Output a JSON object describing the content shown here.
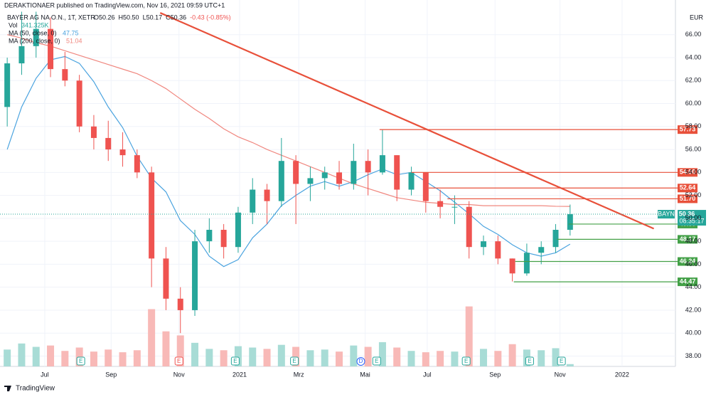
{
  "chart_data": {
    "type": "candlestick",
    "header": "DERAKTIONAER published on TradingView.com, Nov 16, 2021 09:59 UTC+1",
    "symbol": "BAYER AG NA O.N., 1T, XETR",
    "quote": [
      "O50.26",
      "H50.50",
      "L50.17",
      "C50.36",
      "-0.43 (-0.85%)"
    ],
    "currency": "EUR",
    "footer": "TradingView",
    "x": [
      0,
      1,
      2,
      3,
      4,
      5,
      6,
      7,
      8,
      9,
      10,
      11,
      12,
      13,
      14,
      15,
      16,
      17,
      18,
      19,
      20,
      21,
      22,
      23,
      24,
      25,
      26,
      27,
      28,
      29,
      30,
      31,
      32,
      33,
      34,
      35,
      36,
      37,
      38,
      39
    ],
    "open": [
      59.7,
      63.5,
      65,
      66.5,
      63,
      62,
      58,
      57,
      56,
      55.5,
      54,
      46.5,
      43,
      42,
      48,
      49,
      47.5,
      50.5,
      52.5,
      51.5,
      55,
      53,
      53.5,
      54,
      53,
      55,
      54,
      55.5,
      52.5,
      54,
      51.5,
      51,
      51,
      47.5,
      48,
      46.5,
      45.2,
      47,
      47.5,
      49
    ],
    "high": [
      64,
      68,
      68,
      67.5,
      64.5,
      62.5,
      59,
      58.5,
      57.5,
      56,
      54.5,
      47.5,
      44,
      49,
      50,
      49.5,
      51,
      53.5,
      53,
      57,
      55.5,
      54.5,
      54.5,
      55,
      56.5,
      56,
      57.7,
      55.5,
      54.5,
      54,
      52.5,
      52,
      51.5,
      48.5,
      48.5,
      46.5,
      47.8,
      48,
      49.5,
      51.2
    ],
    "low": [
      58,
      62.5,
      64,
      62.3,
      61.5,
      57.5,
      56,
      55,
      54.5,
      53.5,
      44,
      42,
      40,
      41.5,
      47,
      46.5,
      47,
      49.5,
      49.5,
      51,
      49.5,
      51.5,
      52.5,
      52.5,
      52.5,
      52,
      53.8,
      51.5,
      52,
      50.5,
      50,
      49.5,
      46.5,
      46.8,
      46,
      44.5,
      45,
      46,
      47,
      48.5
    ],
    "close": [
      63.5,
      65,
      66.5,
      63,
      62,
      58,
      57,
      56,
      55.5,
      54,
      46.5,
      43,
      42,
      48,
      49,
      47.5,
      50.5,
      52.5,
      51.5,
      55,
      53,
      53.5,
      54,
      53,
      55,
      54,
      55.5,
      52.5,
      54,
      51.5,
      51,
      51,
      47.5,
      48,
      46.5,
      45.2,
      47,
      47.5,
      49,
      50.36
    ],
    "colors": {
      "up": "#26a69a",
      "down": "#ef5350"
    },
    "volume": {
      "name": "Vol",
      "last_label": "341.325K",
      "color_up": "#a8dcd6",
      "color_down": "#f8b9b7",
      "values": [
        2500,
        3400,
        2900,
        3100,
        2300,
        2800,
        2200,
        2500,
        2100,
        2400,
        8500,
        5200,
        4600,
        3500,
        2600,
        2400,
        3000,
        2800,
        2600,
        3200,
        2900,
        2400,
        2500,
        2200,
        3100,
        2900,
        3600,
        2800,
        2300,
        2100,
        2300,
        2200,
        8900,
        2600,
        2300,
        3300,
        2500,
        2400,
        2700,
        341.325
      ],
      "vlim": [
        0,
        9500
      ]
    },
    "series": [
      {
        "name": "MA (50, close, 0)",
        "color": "#4aa3df",
        "values": [
          56,
          59.7,
          62.2,
          63.8,
          64.1,
          63.5,
          61.9,
          59.7,
          57.9,
          55.4,
          53.5,
          52.3,
          49.8,
          48.6,
          46.7,
          45.8,
          46.4,
          48.3,
          49.5,
          51.1,
          52,
          52.8,
          53.2,
          52.8,
          53.2,
          53.8,
          54.3,
          53.8,
          54,
          53.2,
          52.4,
          51.4,
          50.4,
          49.3,
          48.6,
          47.7,
          47,
          46.7,
          47,
          47.75
        ]
      },
      {
        "name": "MA (200, close, 0)",
        "color": "#f0877f",
        "values": [
          66,
          65.7,
          65.3,
          65,
          64.6,
          64.2,
          63.8,
          63.4,
          63,
          62.6,
          62,
          61.3,
          60.4,
          59.5,
          58.7,
          57.8,
          57.1,
          56.6,
          56,
          55.5,
          55,
          54.5,
          54,
          53.5,
          53,
          52.6,
          52.2,
          51.8,
          51.6,
          51.4,
          51.3,
          51.2,
          51.2,
          51.1,
          51.1,
          51.1,
          51.1,
          51.1,
          51.05,
          51.04
        ]
      }
    ],
    "trendline": {
      "color": "#e8503a",
      "x": [
        10.6,
        44.8
      ],
      "values": [
        67.9,
        49.1
      ]
    },
    "levels": [
      {
        "value": 57.73,
        "start": 25.8,
        "color": "#e8503a"
      },
      {
        "value": {
          "value": 54,
          "label": "54.00"
        },
        "start": 28,
        "color": "#e8503a"
      },
      {
        "value": 52.64,
        "start": 29.2,
        "color": "#e8503a"
      },
      {
        "value": {
          "value": 51.7,
          "label": "51.70"
        },
        "start": 30.5,
        "color": "#e8503a"
      },
      {
        "value": {
          "value": 49.5,
          "label": "49.50"
        },
        "start": 38.9,
        "color": "#43a047"
      },
      {
        "value": 48.17,
        "start": 38.1,
        "color": "#43a047"
      },
      {
        "value": 46.24,
        "start": 35.2,
        "color": "#43a047"
      },
      {
        "value": 44.47,
        "start": 35.1,
        "color": "#43a047"
      }
    ],
    "last_price": {
      "name": "BAYN",
      "value": 50.36,
      "time": "08:35:17",
      "color": "#26a69a"
    },
    "events": [
      {
        "x": 5.1,
        "label": "E",
        "color": "#26a69a"
      },
      {
        "x": 11.9,
        "label": "E",
        "color": "#ef5350"
      },
      {
        "x": 15.8,
        "label": "E",
        "color": "#26a69a"
      },
      {
        "x": 19.9,
        "label": "E",
        "color": "#26a69a"
      },
      {
        "x": 24.5,
        "label": "D",
        "color": "#2962ff"
      },
      {
        "x": 25.6,
        "label": "E",
        "color": "#26a69a"
      },
      {
        "x": 31.8,
        "label": "E",
        "color": "#26a69a"
      },
      {
        "x": 36.2,
        "label": "E",
        "color": "#26a69a"
      },
      {
        "x": 38.4,
        "label": "E",
        "color": "#26a69a"
      }
    ],
    "xlim": [
      -0.5,
      46.3
    ],
    "xticks": [
      {
        "value": 2.6,
        "label": "Jul"
      },
      {
        "value": 7.2,
        "label": "Sep"
      },
      {
        "value": 11.9,
        "label": "Nov"
      },
      {
        "value": 16.1,
        "label": "2021"
      },
      {
        "value": 20.2,
        "label": "Mrz"
      },
      {
        "value": 24.8,
        "label": "Mai"
      },
      {
        "value": 29.1,
        "label": "Jul"
      },
      {
        "value": 33.8,
        "label": "Sep"
      },
      {
        "value": 38.3,
        "label": "Nov"
      },
      {
        "value": 42.6,
        "label": "2022"
      }
    ],
    "ylim": [
      37.1,
      68.4
    ],
    "yticks": [
      {
        "value": 38,
        "label": "38.00"
      },
      {
        "value": 40,
        "label": "40.00"
      },
      {
        "value": 42,
        "label": "42.00"
      },
      {
        "value": 44,
        "label": "44.00"
      },
      {
        "value": 46,
        "label": "46.00"
      },
      {
        "value": 48,
        "label": "48.00"
      },
      {
        "value": 50,
        "label": "50.00"
      },
      {
        "value": 52,
        "label": "52.00"
      },
      {
        "value": 54,
        "label": "54.00"
      },
      {
        "value": 56,
        "label": "56.00"
      },
      {
        "value": 58,
        "label": "58.00"
      },
      {
        "value": 60,
        "label": "60.00"
      },
      {
        "value": 62,
        "label": "62.00"
      },
      {
        "value": 64,
        "label": "64.00"
      },
      {
        "value": 66,
        "label": "66.00"
      }
    ],
    "grid": true
  }
}
